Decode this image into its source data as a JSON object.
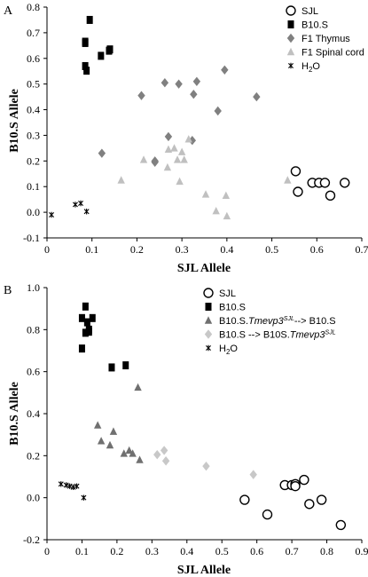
{
  "chart_data": [
    {
      "type": "scatter",
      "panel_label": "A",
      "xlabel": "SJL Allele",
      "ylabel": "B10.S Allele",
      "xlim": [
        0,
        0.7
      ],
      "ylim": [
        -0.1,
        0.8
      ],
      "x_ticks": [
        "0",
        "0.1",
        "0.2",
        "0.3",
        "0.4",
        "0.5",
        "0.6",
        "0.7"
      ],
      "y_ticks": [
        "-0.1",
        "0.0",
        "0.1",
        "0.2",
        "0.3",
        "0.4",
        "0.5",
        "0.6",
        "0.7",
        "0.8"
      ],
      "grid": false,
      "legend_position": "top-right",
      "series": [
        {
          "name": "SJL",
          "marker": "open-circle",
          "color": "#000000",
          "points": [
            [
              0.553,
              0.16
            ],
            [
              0.558,
              0.08
            ],
            [
              0.59,
              0.115
            ],
            [
              0.605,
              0.115
            ],
            [
              0.618,
              0.115
            ],
            [
              0.63,
              0.065
            ],
            [
              0.662,
              0.115
            ]
          ]
        },
        {
          "name": "B10.S",
          "marker": "square",
          "color": "#000000",
          "points": [
            [
              0.095,
              0.75
            ],
            [
              0.085,
              0.665
            ],
            [
              0.085,
              0.66
            ],
            [
              0.14,
              0.635
            ],
            [
              0.138,
              0.63
            ],
            [
              0.12,
              0.61
            ],
            [
              0.085,
              0.57
            ],
            [
              0.088,
              0.552
            ]
          ]
        },
        {
          "name": "F1 Thymus",
          "marker": "diamond",
          "color": "#808080",
          "points": [
            [
              0.21,
              0.455
            ],
            [
              0.262,
              0.505
            ],
            [
              0.293,
              0.5
            ],
            [
              0.333,
              0.51
            ],
            [
              0.395,
              0.555
            ],
            [
              0.466,
              0.45
            ],
            [
              0.326,
              0.46
            ],
            [
              0.38,
              0.395
            ],
            [
              0.27,
              0.295
            ],
            [
              0.323,
              0.28
            ],
            [
              0.122,
              0.23
            ],
            [
              0.24,
              0.2
            ],
            [
              0.24,
              0.195
            ]
          ]
        },
        {
          "name": "F1 Spinal cord",
          "marker": "triangle",
          "color": "#c0c0c0",
          "points": [
            [
              0.315,
              0.285
            ],
            [
              0.27,
              0.245
            ],
            [
              0.283,
              0.25
            ],
            [
              0.3,
              0.235
            ],
            [
              0.215,
              0.205
            ],
            [
              0.29,
              0.205
            ],
            [
              0.305,
              0.205
            ],
            [
              0.268,
              0.175
            ],
            [
              0.165,
              0.125
            ],
            [
              0.295,
              0.12
            ],
            [
              0.535,
              0.125
            ],
            [
              0.353,
              0.07
            ],
            [
              0.398,
              0.065
            ],
            [
              0.376,
              0.005
            ],
            [
              0.4,
              -0.015
            ]
          ]
        },
        {
          "name": "H2O",
          "marker": "asterisk",
          "color": "#000000",
          "points": [
            [
              0.01,
              -0.01
            ],
            [
              0.063,
              0.03
            ],
            [
              0.075,
              0.035
            ],
            [
              0.088,
              0.003
            ]
          ]
        }
      ]
    },
    {
      "type": "scatter",
      "panel_label": "B",
      "xlabel": "SJL Allele",
      "ylabel": "B10.S Allele",
      "xlim": [
        0,
        0.9
      ],
      "ylim": [
        -0.2,
        1.0
      ],
      "x_ticks": [
        "0",
        "0.1",
        "0.2",
        "0.3",
        "0.4",
        "0.5",
        "0.6",
        "0.7",
        "0.8",
        "0.9"
      ],
      "y_ticks": [
        "-0.2",
        "0.0",
        "0.2",
        "0.4",
        "0.6",
        "0.8",
        "1.0"
      ],
      "grid": false,
      "legend_position": "top-right",
      "series": [
        {
          "name": "SJL",
          "marker": "open-circle",
          "color": "#000000",
          "points": [
            [
              0.565,
              -0.01
            ],
            [
              0.63,
              -0.08
            ],
            [
              0.68,
              0.06
            ],
            [
              0.7,
              0.06
            ],
            [
              0.71,
              0.065
            ],
            [
              0.71,
              0.055
            ],
            [
              0.735,
              0.085
            ],
            [
              0.75,
              -0.03
            ],
            [
              0.785,
              -0.01
            ],
            [
              0.84,
              -0.13
            ]
          ]
        },
        {
          "name": "B10.S",
          "marker": "square",
          "color": "#000000",
          "points": [
            [
              0.11,
              0.91
            ],
            [
              0.1,
              0.855
            ],
            [
              0.13,
              0.855
            ],
            [
              0.115,
              0.835
            ],
            [
              0.12,
              0.8
            ],
            [
              0.11,
              0.785
            ],
            [
              0.12,
              0.79
            ],
            [
              0.1,
              0.71
            ],
            [
              0.185,
              0.62
            ],
            [
              0.225,
              0.63
            ]
          ]
        },
        {
          "name": "B10.S.Tmevp3-SJL --> B10.S",
          "legend_parts": [
            "B10.S.",
            "Tmevp3",
            "SJL",
            "--> B10.S"
          ],
          "marker": "triangle",
          "color": "#707070",
          "points": [
            [
              0.26,
              0.525
            ],
            [
              0.145,
              0.345
            ],
            [
              0.19,
              0.315
            ],
            [
              0.155,
              0.27
            ],
            [
              0.18,
              0.25
            ],
            [
              0.235,
              0.225
            ],
            [
              0.22,
              0.21
            ],
            [
              0.245,
              0.21
            ],
            [
              0.265,
              0.18
            ]
          ]
        },
        {
          "name": "B10.S --> B10S.Tmevp3-SJL",
          "legend_parts": [
            "B10.S --> B10S.",
            "Tmevp3",
            "SJL"
          ],
          "marker": "diamond",
          "color": "#c8c8c8",
          "points": [
            [
              0.335,
              0.225
            ],
            [
              0.315,
              0.205
            ],
            [
              0.34,
              0.175
            ],
            [
              0.455,
              0.15
            ],
            [
              0.59,
              0.11
            ]
          ]
        },
        {
          "name": "H2O",
          "marker": "asterisk",
          "color": "#000000",
          "points": [
            [
              0.04,
              0.065
            ],
            [
              0.055,
              0.06
            ],
            [
              0.065,
              0.055
            ],
            [
              0.075,
              0.05
            ],
            [
              0.085,
              0.055
            ],
            [
              0.105,
              0.0
            ]
          ]
        }
      ]
    }
  ]
}
